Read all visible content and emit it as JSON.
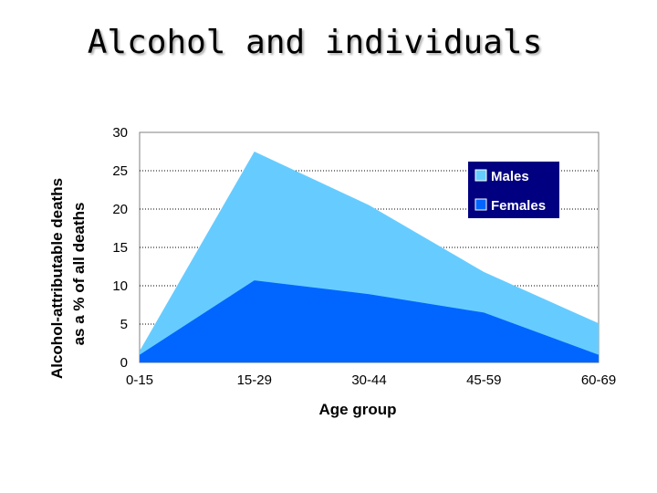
{
  "slide": {
    "title": "Alcohol and individuals"
  },
  "chart_data": {
    "type": "area",
    "stacked": false,
    "categories": [
      "0-15",
      "15-29",
      "30-44",
      "45-59",
      "60-69"
    ],
    "series": [
      {
        "name": "Males",
        "values": [
          1.5,
          27.5,
          20.5,
          11.8,
          5.1
        ],
        "color": "#66ccff"
      },
      {
        "name": "Females",
        "values": [
          1.0,
          10.7,
          8.9,
          6.5,
          1.0
        ],
        "color": "#0066ff"
      }
    ],
    "xlabel": "Age group",
    "ylabel_lines": [
      "Alcohol-attributable deaths",
      "as a % of all deaths"
    ],
    "ylim": [
      0,
      30
    ],
    "yticks": [
      0,
      5,
      10,
      15,
      20,
      25,
      30
    ],
    "grid": "horizontal dotted",
    "legend_placement": "top-right",
    "legend_background": "#000080"
  }
}
